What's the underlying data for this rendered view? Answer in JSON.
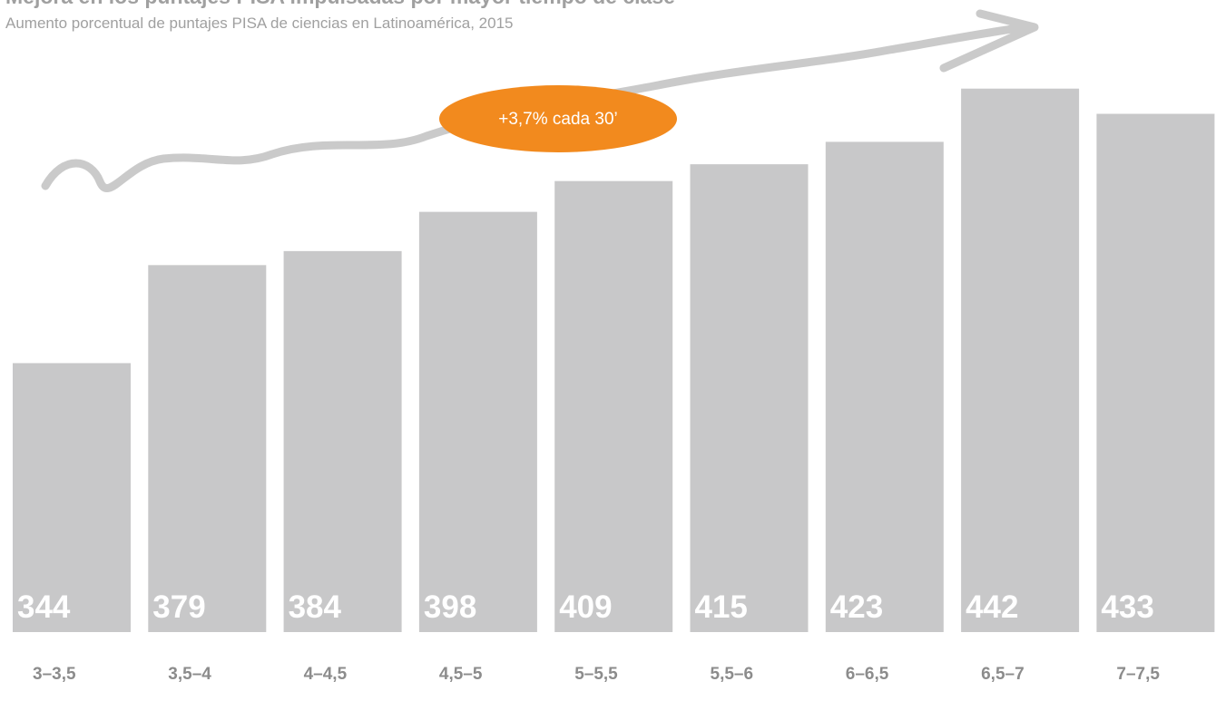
{
  "chart_data": {
    "type": "bar",
    "title": "Mejora en los puntajes PISA impulsadas por mayor tiempo de clase",
    "subtitle": "Aumento porcentual de puntajes PISA de ciencias en Latinoamérica, 2015",
    "annotation": "+3,7% cada 30’",
    "categories": [
      "3–3,5",
      "3,5–4",
      "4–4,5",
      "4,5–5",
      "5–5,5",
      "5,5–6",
      "6–6,5",
      "6,5–7",
      "7–7,5"
    ],
    "values": [
      344,
      379,
      384,
      398,
      409,
      415,
      423,
      442,
      433
    ],
    "color": "#c8c8c9",
    "ylim": [
      248,
      450
    ]
  }
}
